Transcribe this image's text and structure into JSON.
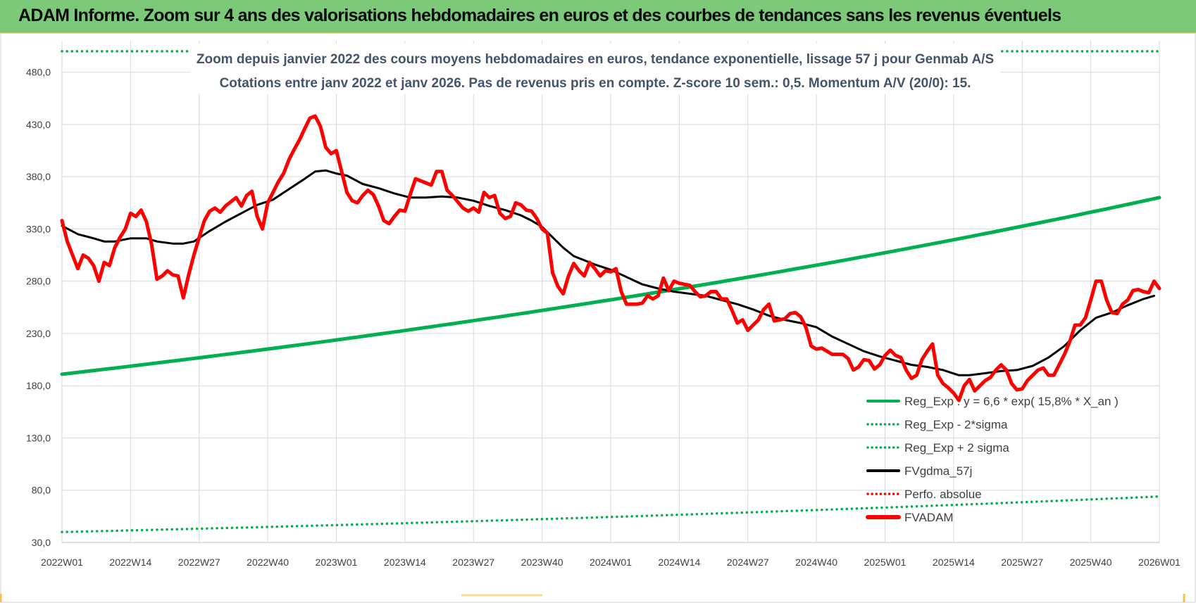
{
  "banner": {
    "title": "ADAM Informe. Zoom sur 4 ans des valorisations hebdomadaires en euros et des courbes de tendances sans les revenus éventuels"
  },
  "colors": {
    "green": "#00b050",
    "black": "#000000",
    "red": "#ff0000",
    "grid": "#d9d9d9",
    "banner": "#7dc97a"
  },
  "chart_data": {
    "type": "line",
    "title_lines": [
      "Zoom depuis janvier 2022 des cours moyens hebdomadaires en euros, tendance exponentielle, lissage 57 j pour Genmab A/S",
      "Cotations entre janv 2022 et janv 2026. Pas de revenus pris en compte. Z-score 10 sem.: 0,5. Momentum A/V (20/0):  15."
    ],
    "ylim": [
      30,
      510
    ],
    "yticks": [
      30,
      80,
      130,
      180,
      230,
      280,
      330,
      380,
      430,
      480
    ],
    "ytick_labels": [
      "30,0",
      "80,0",
      "130,0",
      "180,0",
      "230,0",
      "280,0",
      "330,0",
      "380,0",
      "430,0",
      "480,0"
    ],
    "x_index_range": [
      0,
      208
    ],
    "xtick_index": [
      0,
      13,
      26,
      39,
      52,
      65,
      78,
      91,
      104,
      117,
      130,
      143,
      156,
      169,
      182,
      195,
      208
    ],
    "xtick_labels": [
      "2022W01",
      "2022W14",
      "2022W27",
      "2022W40",
      "2023W01",
      "2023W14",
      "2023W27",
      "2023W40",
      "2024W01",
      "2024W14",
      "2024W27",
      "2024W40",
      "2025W01",
      "2025W14",
      "2025W27",
      "2025W40",
      "2026W01"
    ],
    "series": [
      {
        "name": "Reg_Exp : y = 6,6 * exp( 15,8% *  X_an )",
        "style": "solid",
        "color": "#00b050",
        "start": 191,
        "end": 360
      },
      {
        "name": "Reg_Exp - 2*sigma",
        "style": "dotted",
        "color": "#00b050",
        "start": 40,
        "end": 74
      },
      {
        "name": "Reg_Exp + 2 sigma",
        "style": "dotted",
        "color": "#00b050",
        "start": 500,
        "end": 500
      },
      {
        "name": "FVgdma_57j",
        "style": "solid",
        "color": "#000000",
        "points": [
          [
            0,
            333
          ],
          [
            3,
            325
          ],
          [
            6,
            321
          ],
          [
            8,
            318
          ],
          [
            10,
            318
          ],
          [
            13,
            321
          ],
          [
            16,
            321
          ],
          [
            18,
            318
          ],
          [
            21,
            316
          ],
          [
            23,
            316
          ],
          [
            25,
            318
          ],
          [
            28,
            328
          ],
          [
            31,
            337
          ],
          [
            34,
            345
          ],
          [
            37,
            353
          ],
          [
            40,
            358
          ],
          [
            43,
            368
          ],
          [
            46,
            378
          ],
          [
            48,
            385
          ],
          [
            50,
            386
          ],
          [
            52,
            383
          ],
          [
            54,
            381
          ],
          [
            57,
            373
          ],
          [
            60,
            369
          ],
          [
            63,
            364
          ],
          [
            66,
            360
          ],
          [
            69,
            360
          ],
          [
            72,
            361
          ],
          [
            75,
            360
          ],
          [
            78,
            357
          ],
          [
            81,
            352
          ],
          [
            84,
            348
          ],
          [
            87,
            343
          ],
          [
            89,
            338
          ],
          [
            91,
            332
          ],
          [
            93,
            322
          ],
          [
            95,
            312
          ],
          [
            97,
            304
          ],
          [
            99,
            300
          ],
          [
            101,
            296
          ],
          [
            104,
            291
          ],
          [
            107,
            284
          ],
          [
            110,
            277
          ],
          [
            113,
            273
          ],
          [
            116,
            270
          ],
          [
            119,
            268
          ],
          [
            122,
            266
          ],
          [
            125,
            262
          ],
          [
            128,
            258
          ],
          [
            131,
            253
          ],
          [
            134,
            247
          ],
          [
            137,
            243
          ],
          [
            140,
            240
          ],
          [
            143,
            236
          ],
          [
            146,
            227
          ],
          [
            149,
            220
          ],
          [
            152,
            213
          ],
          [
            155,
            208
          ],
          [
            158,
            204
          ],
          [
            161,
            200
          ],
          [
            164,
            198
          ],
          [
            167,
            195
          ],
          [
            170,
            190
          ],
          [
            172,
            190
          ],
          [
            175,
            192
          ],
          [
            178,
            194
          ],
          [
            181,
            195
          ],
          [
            184,
            199
          ],
          [
            187,
            207
          ],
          [
            190,
            218
          ],
          [
            193,
            233
          ],
          [
            196,
            245
          ],
          [
            199,
            250
          ],
          [
            202,
            257
          ],
          [
            205,
            263
          ],
          [
            207,
            266
          ]
        ]
      },
      {
        "name": "Perfo. absolue",
        "style": "dotted",
        "color": "#ff0000",
        "points": []
      },
      {
        "name": "FVADAM",
        "style": "solid",
        "color": "#ff0000",
        "points": [
          [
            0,
            338
          ],
          [
            1,
            318
          ],
          [
            2,
            305
          ],
          [
            3,
            292
          ],
          [
            4,
            305
          ],
          [
            5,
            302
          ],
          [
            6,
            295
          ],
          [
            7,
            280
          ],
          [
            8,
            298
          ],
          [
            9,
            295
          ],
          [
            10,
            312
          ],
          [
            11,
            322
          ],
          [
            12,
            330
          ],
          [
            13,
            345
          ],
          [
            14,
            342
          ],
          [
            15,
            348
          ],
          [
            16,
            337
          ],
          [
            17,
            315
          ],
          [
            18,
            282
          ],
          [
            19,
            285
          ],
          [
            20,
            290
          ],
          [
            21,
            286
          ],
          [
            22,
            285
          ],
          [
            23,
            264
          ],
          [
            24,
            286
          ],
          [
            25,
            305
          ],
          [
            26,
            322
          ],
          [
            27,
            338
          ],
          [
            28,
            347
          ],
          [
            29,
            350
          ],
          [
            30,
            346
          ],
          [
            31,
            352
          ],
          [
            32,
            356
          ],
          [
            33,
            360
          ],
          [
            34,
            352
          ],
          [
            35,
            362
          ],
          [
            36,
            366
          ],
          [
            37,
            342
          ],
          [
            38,
            330
          ],
          [
            39,
            355
          ],
          [
            40,
            365
          ],
          [
            41,
            375
          ],
          [
            42,
            383
          ],
          [
            43,
            396
          ],
          [
            44,
            406
          ],
          [
            45,
            415
          ],
          [
            46,
            426
          ],
          [
            47,
            436
          ],
          [
            48,
            438
          ],
          [
            49,
            428
          ],
          [
            50,
            408
          ],
          [
            51,
            402
          ],
          [
            52,
            405
          ],
          [
            53,
            385
          ],
          [
            54,
            365
          ],
          [
            55,
            357
          ],
          [
            56,
            355
          ],
          [
            57,
            362
          ],
          [
            58,
            367
          ],
          [
            59,
            363
          ],
          [
            60,
            352
          ],
          [
            61,
            338
          ],
          [
            62,
            335
          ],
          [
            63,
            342
          ],
          [
            64,
            348
          ],
          [
            65,
            347
          ],
          [
            66,
            363
          ],
          [
            67,
            378
          ],
          [
            68,
            376
          ],
          [
            69,
            374
          ],
          [
            70,
            372
          ],
          [
            71,
            385
          ],
          [
            72,
            385
          ],
          [
            73,
            367
          ],
          [
            74,
            362
          ],
          [
            75,
            356
          ],
          [
            76,
            350
          ],
          [
            77,
            347
          ],
          [
            78,
            350
          ],
          [
            79,
            346
          ],
          [
            80,
            365
          ],
          [
            81,
            360
          ],
          [
            82,
            362
          ],
          [
            83,
            345
          ],
          [
            84,
            340
          ],
          [
            85,
            342
          ],
          [
            86,
            355
          ],
          [
            87,
            353
          ],
          [
            88,
            348
          ],
          [
            89,
            347
          ],
          [
            90,
            340
          ],
          [
            91,
            330
          ],
          [
            92,
            326
          ],
          [
            93,
            288
          ],
          [
            94,
            275
          ],
          [
            95,
            268
          ],
          [
            96,
            285
          ],
          [
            97,
            297
          ],
          [
            98,
            290
          ],
          [
            99,
            285
          ],
          [
            100,
            298
          ],
          [
            101,
            292
          ],
          [
            102,
            285
          ],
          [
            103,
            290
          ],
          [
            104,
            289
          ],
          [
            105,
            292
          ],
          [
            106,
            270
          ],
          [
            107,
            258
          ],
          [
            108,
            258
          ],
          [
            109,
            258
          ],
          [
            110,
            259
          ],
          [
            111,
            266
          ],
          [
            112,
            263
          ],
          [
            113,
            266
          ],
          [
            114,
            283
          ],
          [
            115,
            271
          ],
          [
            116,
            280
          ],
          [
            117,
            278
          ],
          [
            118,
            277
          ],
          [
            119,
            276
          ],
          [
            120,
            270
          ],
          [
            121,
            265
          ],
          [
            122,
            266
          ],
          [
            123,
            270
          ],
          [
            124,
            270
          ],
          [
            125,
            263
          ],
          [
            126,
            263
          ],
          [
            127,
            252
          ],
          [
            128,
            240
          ],
          [
            129,
            243
          ],
          [
            130,
            233
          ],
          [
            131,
            238
          ],
          [
            132,
            243
          ],
          [
            133,
            253
          ],
          [
            134,
            258
          ],
          [
            135,
            242
          ],
          [
            136,
            243
          ],
          [
            137,
            244
          ],
          [
            138,
            249
          ],
          [
            139,
            250
          ],
          [
            140,
            246
          ],
          [
            141,
            236
          ],
          [
            142,
            218
          ],
          [
            143,
            215
          ],
          [
            144,
            216
          ],
          [
            145,
            213
          ],
          [
            146,
            210
          ],
          [
            147,
            210
          ],
          [
            148,
            210
          ],
          [
            149,
            206
          ],
          [
            150,
            195
          ],
          [
            151,
            198
          ],
          [
            152,
            205
          ],
          [
            153,
            204
          ],
          [
            154,
            196
          ],
          [
            155,
            200
          ],
          [
            156,
            209
          ],
          [
            157,
            214
          ],
          [
            158,
            209
          ],
          [
            159,
            207
          ],
          [
            160,
            195
          ],
          [
            161,
            187
          ],
          [
            162,
            190
          ],
          [
            163,
            205
          ],
          [
            164,
            213
          ],
          [
            165,
            220
          ],
          [
            166,
            190
          ],
          [
            167,
            182
          ],
          [
            168,
            178
          ],
          [
            169,
            173
          ],
          [
            170,
            166
          ],
          [
            171,
            180
          ],
          [
            172,
            186
          ],
          [
            173,
            175
          ],
          [
            174,
            180
          ],
          [
            175,
            185
          ],
          [
            176,
            188
          ],
          [
            177,
            195
          ],
          [
            178,
            200
          ],
          [
            179,
            195
          ],
          [
            180,
            182
          ],
          [
            181,
            176
          ],
          [
            182,
            177
          ],
          [
            183,
            185
          ],
          [
            184,
            190
          ],
          [
            185,
            195
          ],
          [
            186,
            197
          ],
          [
            187,
            190
          ],
          [
            188,
            190
          ],
          [
            189,
            200
          ],
          [
            190,
            210
          ],
          [
            191,
            222
          ],
          [
            192,
            238
          ],
          [
            193,
            238
          ],
          [
            194,
            245
          ],
          [
            195,
            262
          ],
          [
            196,
            280
          ],
          [
            197,
            280
          ],
          [
            198,
            262
          ],
          [
            199,
            250
          ],
          [
            200,
            249
          ],
          [
            201,
            258
          ],
          [
            202,
            262
          ],
          [
            203,
            271
          ],
          [
            204,
            272
          ],
          [
            205,
            270
          ],
          [
            206,
            269
          ],
          [
            207,
            280
          ],
          [
            208,
            273
          ]
        ]
      }
    ]
  }
}
